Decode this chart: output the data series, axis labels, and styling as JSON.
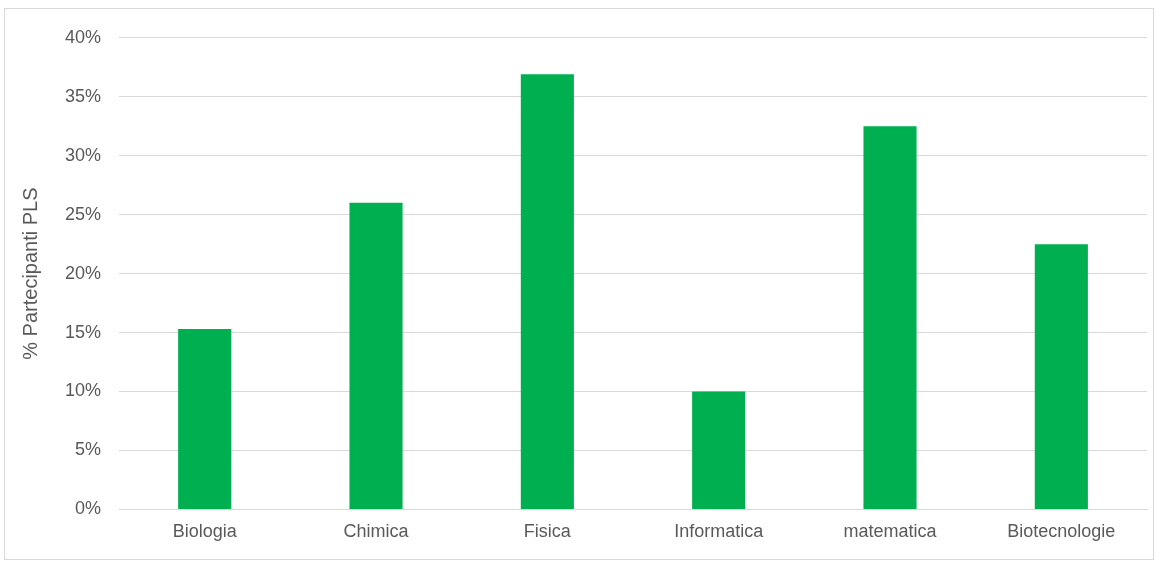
{
  "chart_data": {
    "type": "bar",
    "ylabel": "% Partecipanti PLS",
    "categories": [
      "Biologia",
      "Chimica",
      "Fisica",
      "Informatica",
      "matematica",
      "Biotecnologie"
    ],
    "values": [
      15.3,
      26.0,
      36.9,
      10.0,
      32.5,
      22.5
    ],
    "color": "#00b050",
    "ylim": [
      0,
      40
    ],
    "yticks": [
      {
        "value": 0,
        "label": "0%"
      },
      {
        "value": 5,
        "label": "5%"
      },
      {
        "value": 10,
        "label": "10%"
      },
      {
        "value": 15,
        "label": "15%"
      },
      {
        "value": 20,
        "label": "20%"
      },
      {
        "value": 25,
        "label": "25%"
      },
      {
        "value": 30,
        "label": "30%"
      },
      {
        "value": 35,
        "label": "35%"
      },
      {
        "value": 40,
        "label": "40%"
      }
    ],
    "grid": "y",
    "legend": false
  }
}
